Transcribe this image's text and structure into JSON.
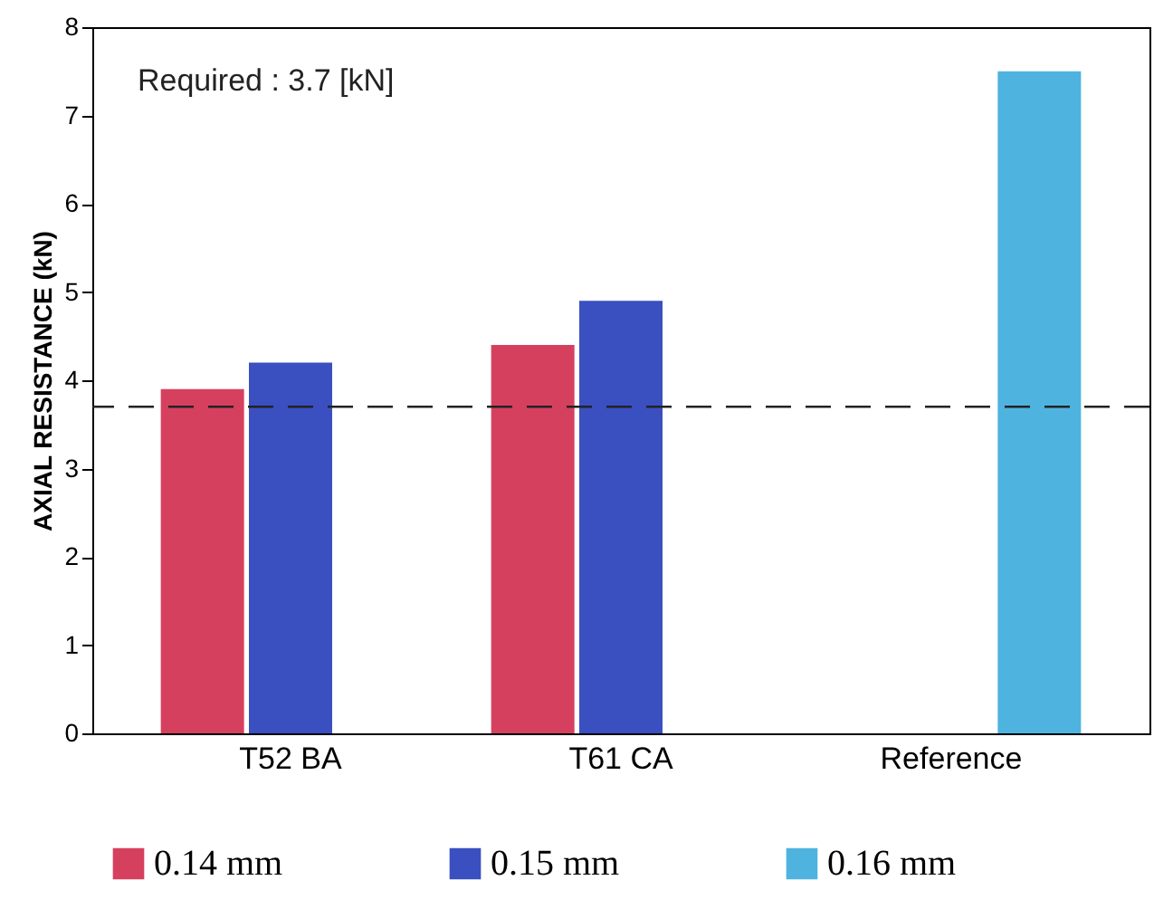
{
  "chart_data": {
    "type": "bar",
    "ylabel": "AXIAL RESISTANCE (kN)",
    "categories": [
      "T52  BA",
      "T61  CA",
      "Reference"
    ],
    "series": [
      {
        "name": "0.14 mm",
        "color": "#d6405f",
        "values": [
          3.9,
          4.4,
          null
        ]
      },
      {
        "name": "0.15 mm",
        "color": "#3a4fc0",
        "values": [
          4.2,
          4.9,
          null
        ]
      },
      {
        "name": "0.16 mm",
        "color": "#4fb3e0",
        "values": [
          null,
          null,
          7.5
        ]
      }
    ],
    "ylim": [
      0,
      8
    ],
    "yticks": [
      0,
      1,
      2,
      3,
      4,
      5,
      6,
      7,
      8
    ],
    "ref_lines": [
      {
        "axis": "y",
        "value": 3.7,
        "color": "#222222",
        "line_style": "dashed"
      }
    ],
    "annotations": [
      "Required : 3.7 [kN]"
    ],
    "grid": false,
    "legend": "bottom"
  }
}
